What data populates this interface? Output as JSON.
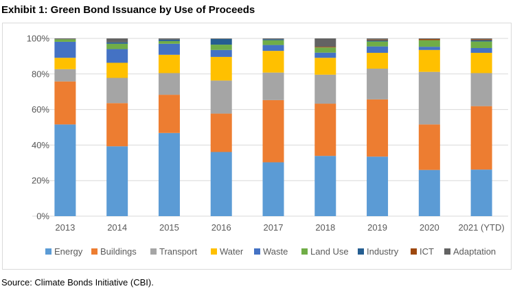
{
  "title": "Exhibit 1: Green Bond Issuance by Use of Proceeds",
  "source": "Source: Climate Bonds Initiative (CBI).",
  "chart_data": {
    "type": "bar",
    "stacked": true,
    "normalized": true,
    "title": "",
    "xlabel": "",
    "ylabel": "",
    "ylim": [
      0,
      100
    ],
    "yticks": [
      "0%",
      "20%",
      "40%",
      "60%",
      "80%",
      "100%"
    ],
    "grid": true,
    "legend_position": "bottom",
    "categories": [
      "2013",
      "2014",
      "2015",
      "2016",
      "2017",
      "2018",
      "2019",
      "2020",
      "2021 (YTD)"
    ],
    "series": [
      {
        "name": "Energy",
        "color": "#5b9bd5",
        "values": [
          51.6,
          39.3,
          46.8,
          36.1,
          30.3,
          33.9,
          33.5,
          26.0,
          26.2
        ]
      },
      {
        "name": "Buildings",
        "color": "#ed7d31",
        "values": [
          24.2,
          24.3,
          21.5,
          21.6,
          35.0,
          29.4,
          32.2,
          25.6,
          35.7
        ]
      },
      {
        "name": "Transport",
        "color": "#a5a5a5",
        "values": [
          6.9,
          14.2,
          12.2,
          18.6,
          15.5,
          16.3,
          17.3,
          29.6,
          18.6
        ]
      },
      {
        "name": "Water",
        "color": "#ffc000",
        "values": [
          6.4,
          8.5,
          10.3,
          13.3,
          12.2,
          9.5,
          8.9,
          12.3,
          11.4
        ]
      },
      {
        "name": "Waste",
        "color": "#4472c4",
        "values": [
          9.0,
          7.7,
          6.2,
          3.9,
          3.3,
          2.9,
          3.6,
          1.8,
          2.7
        ]
      },
      {
        "name": "Land Use",
        "color": "#70ad47",
        "values": [
          1.4,
          3.0,
          1.5,
          3.0,
          2.7,
          2.9,
          2.8,
          3.7,
          3.7
        ]
      },
      {
        "name": "Industry",
        "color": "#255e91",
        "values": [
          0,
          0.8,
          0.8,
          3.2,
          0.5,
          0,
          0.6,
          0,
          0.7
        ]
      },
      {
        "name": "ICT",
        "color": "#9e480e",
        "values": [
          0,
          0,
          0,
          0,
          0,
          0.4,
          0.4,
          0.6,
          0.5
        ]
      },
      {
        "name": "Adaptation",
        "color": "#636363",
        "values": [
          0.5,
          2.2,
          0.7,
          0.3,
          0.5,
          4.7,
          0.7,
          0.4,
          0.5
        ]
      }
    ]
  }
}
